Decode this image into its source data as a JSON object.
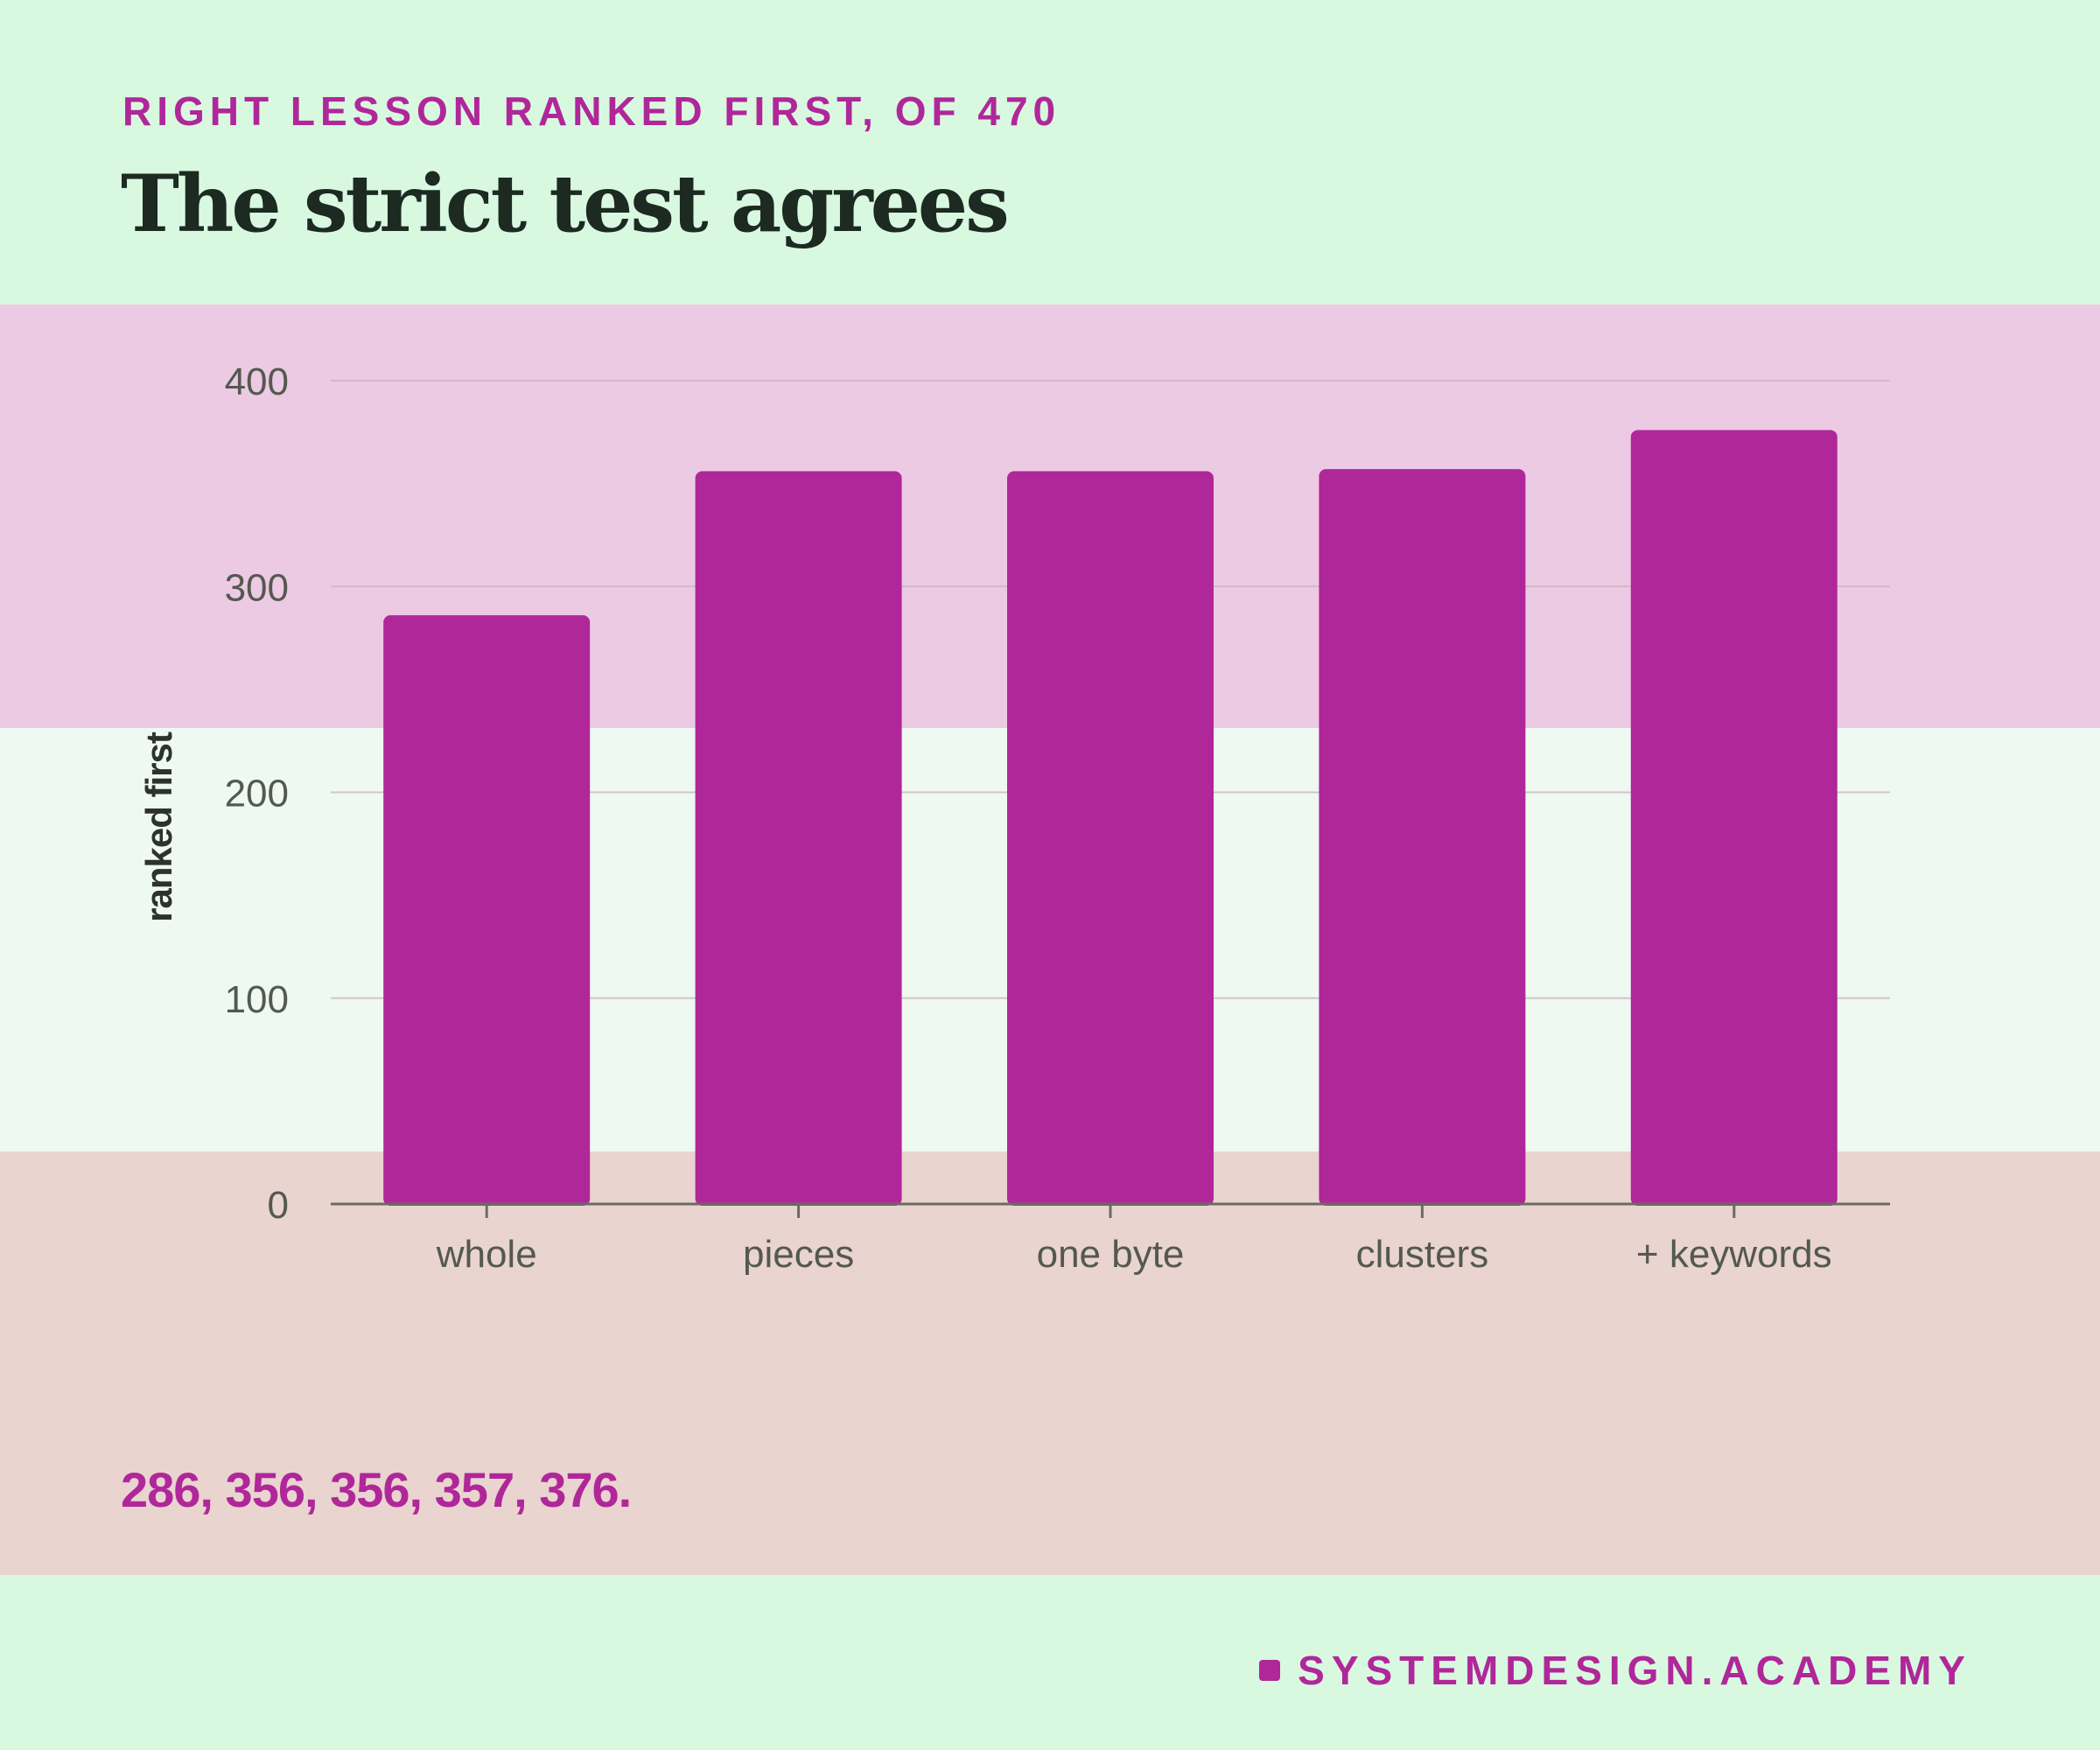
{
  "header": {
    "kicker": "RIGHT LESSON RANKED FIRST, OF 470",
    "title": "The strict test agrees"
  },
  "footer": {
    "values_text": "286, 356, 356, 357, 376.",
    "brand": "SYSTEMDESIGN.ACADEMY"
  },
  "colors": {
    "bar": "#b0279a",
    "grid": "#c8b4c2",
    "axis": "#6b6b63",
    "tick_text": "#545950"
  },
  "chart_data": {
    "type": "bar",
    "categories": [
      "whole",
      "pieces",
      "one byte",
      "clusters",
      "+ keywords"
    ],
    "values": [
      286,
      356,
      356,
      357,
      376
    ],
    "ylabel": "ranked first",
    "xlabel": "",
    "ylim": [
      0,
      400
    ],
    "yticks": [
      0,
      100,
      200,
      300,
      400
    ],
    "grid": true,
    "legend": "none"
  }
}
